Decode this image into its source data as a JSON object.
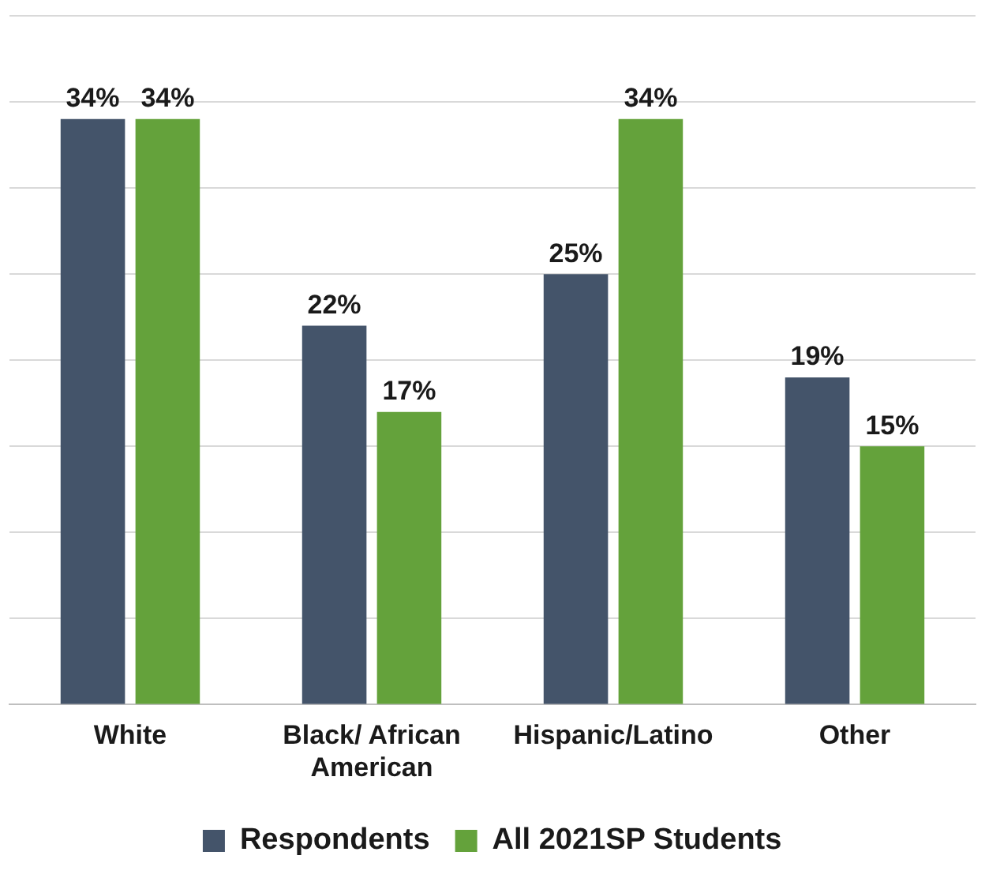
{
  "chart_data": {
    "type": "bar",
    "categories": [
      "White",
      "Black/ African American",
      "Hispanic/Latino",
      "Other"
    ],
    "series": [
      {
        "name": "Respondents",
        "color": "#44546a",
        "values": [
          34,
          22,
          25,
          19
        ],
        "value_labels": [
          "34%",
          "22%",
          "25%",
          "19%"
        ]
      },
      {
        "name": "All 2021SP Students",
        "color": "#64a23b",
        "values": [
          34,
          17,
          34,
          15
        ],
        "value_labels": [
          "34%",
          "17%",
          "34%",
          "15%"
        ]
      }
    ],
    "ylim": [
      0,
      40
    ],
    "yticks": [
      {
        "value": 0,
        "label": null
      },
      {
        "value": 5,
        "label": null
      },
      {
        "value": 10,
        "label": null
      },
      {
        "value": 15,
        "label": null
      },
      {
        "value": 20,
        "label": null
      },
      {
        "value": 25,
        "label": null
      },
      {
        "value": 30,
        "label": null
      },
      {
        "value": 35,
        "label": null
      },
      {
        "value": 40,
        "label": null
      }
    ],
    "grid": "y",
    "legend": "bottom",
    "tick_labels": "x"
  }
}
